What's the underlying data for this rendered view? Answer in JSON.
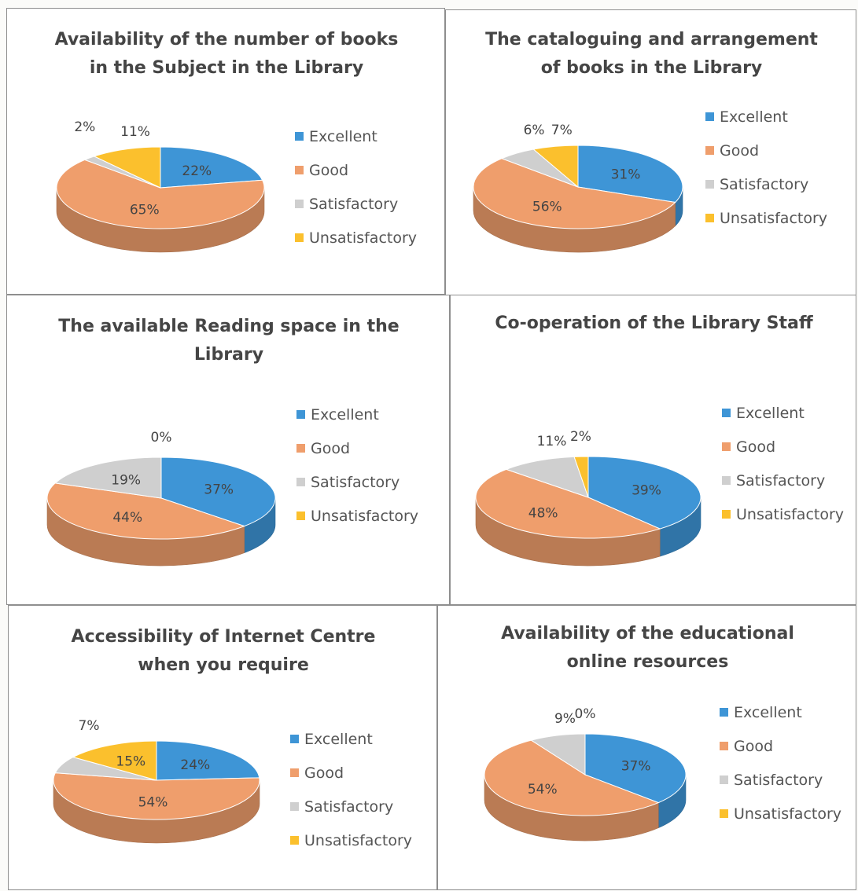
{
  "legend_labels": [
    "Excellent",
    "Good",
    "Satisfactory",
    "Unsatisfactory"
  ],
  "colors": {
    "Excellent": "#3e95d6",
    "Good": "#ef9e6c",
    "Satisfactory": "#cfcfcf",
    "Unsatisfactory": "#fbc02d"
  },
  "chart_data": [
    {
      "type": "pie",
      "title": "Availability of the number of books in the Subject in the Library",
      "categories": [
        "Excellent",
        "Good",
        "Satisfactory",
        "Unsatisfactory"
      ],
      "values": [
        22,
        65,
        2,
        11
      ],
      "labels": [
        "22%",
        "65%",
        "2%",
        "11%"
      ],
      "legend": "right"
    },
    {
      "type": "pie",
      "title": "The cataloguing and arrangement of books in the Library",
      "categories": [
        "Excellent",
        "Good",
        "Satisfactory",
        "Unsatisfactory"
      ],
      "values": [
        31,
        56,
        6,
        7
      ],
      "labels": [
        "31%",
        "56%",
        "6%",
        "7%"
      ],
      "legend": "right"
    },
    {
      "type": "pie",
      "title": "The available Reading space in the Library",
      "categories": [
        "Excellent",
        "Good",
        "Satisfactory",
        "Unsatisfactory"
      ],
      "values": [
        37,
        44,
        19,
        0
      ],
      "labels": [
        "37%",
        "44%",
        "19%",
        "0%"
      ],
      "legend": "right"
    },
    {
      "type": "pie",
      "title": "Co-operation of the Library Staff",
      "categories": [
        "Excellent",
        "Good",
        "Satisfactory",
        "Unsatisfactory"
      ],
      "values": [
        39,
        48,
        11,
        2
      ],
      "labels": [
        "39%",
        "48%",
        "11%",
        "2%"
      ],
      "legend": "right"
    },
    {
      "type": "pie",
      "title": "Accessibility of Internet Centre when you require",
      "categories": [
        "Excellent",
        "Good",
        "Satisfactory",
        "Unsatisfactory"
      ],
      "values": [
        24,
        54,
        7,
        15
      ],
      "labels": [
        "24%",
        "54%",
        "7%",
        "15%"
      ],
      "legend": "right"
    },
    {
      "type": "pie",
      "title": "Availability of the educational online resources",
      "categories": [
        "Excellent",
        "Good",
        "Satisfactory",
        "Unsatisfactory"
      ],
      "values": [
        37,
        54,
        9,
        0
      ],
      "labels": [
        "37%",
        "54%",
        "9%",
        "0%"
      ],
      "legend": "right"
    }
  ]
}
